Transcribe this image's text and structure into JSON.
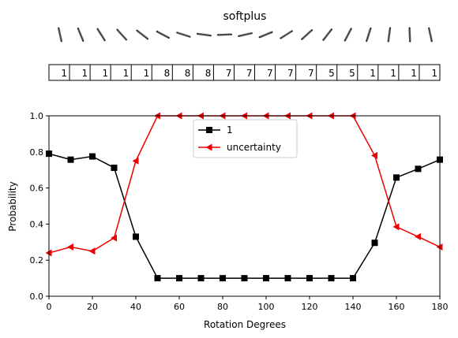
{
  "chart_data": {
    "type": "line",
    "title": "softplus",
    "xlabel": "Rotation Degrees",
    "ylabel": "Probability",
    "xlim": [
      0,
      180
    ],
    "ylim": [
      0,
      1
    ],
    "xticks": [
      "0",
      "20",
      "40",
      "60",
      "80",
      "100",
      "120",
      "140",
      "160",
      "180"
    ],
    "yticks": [
      "0.0",
      "0.2",
      "0.4",
      "0.6",
      "0.8",
      "1.0"
    ],
    "grid": false,
    "legend_position": "top-center",
    "x": [
      0,
      10,
      20,
      30,
      40,
      50,
      60,
      70,
      80,
      90,
      100,
      110,
      120,
      130,
      140,
      150,
      160,
      170,
      180
    ],
    "series": [
      {
        "name": "1",
        "color": "#000000",
        "marker": "square",
        "values": [
          0.79,
          0.757,
          0.775,
          0.712,
          0.33,
          0.1,
          0.1,
          0.1,
          0.1,
          0.1,
          0.1,
          0.1,
          0.1,
          0.1,
          0.1,
          0.296,
          0.658,
          0.706,
          0.757
        ]
      },
      {
        "name": "uncertainty",
        "color": "#ee0000",
        "marker": "triangle-left",
        "values": [
          0.24,
          0.273,
          0.25,
          0.323,
          0.75,
          1.0,
          1.0,
          1.0,
          1.0,
          1.0,
          1.0,
          1.0,
          1.0,
          1.0,
          1.0,
          0.78,
          0.385,
          0.33,
          0.273
        ]
      }
    ],
    "predicted_labels": [
      "1",
      "1",
      "1",
      "1",
      "1",
      "8",
      "8",
      "8",
      "7",
      "7",
      "7",
      "7",
      "7",
      "5",
      "5",
      "1",
      "1",
      "1",
      "1"
    ],
    "digit_strip": {
      "icon": "rotated-digit-one-icon",
      "rotations_deg": [
        0,
        10,
        20,
        30,
        40,
        50,
        60,
        70,
        80,
        90,
        100,
        110,
        120,
        130,
        140,
        150,
        160,
        170,
        180
      ]
    }
  }
}
